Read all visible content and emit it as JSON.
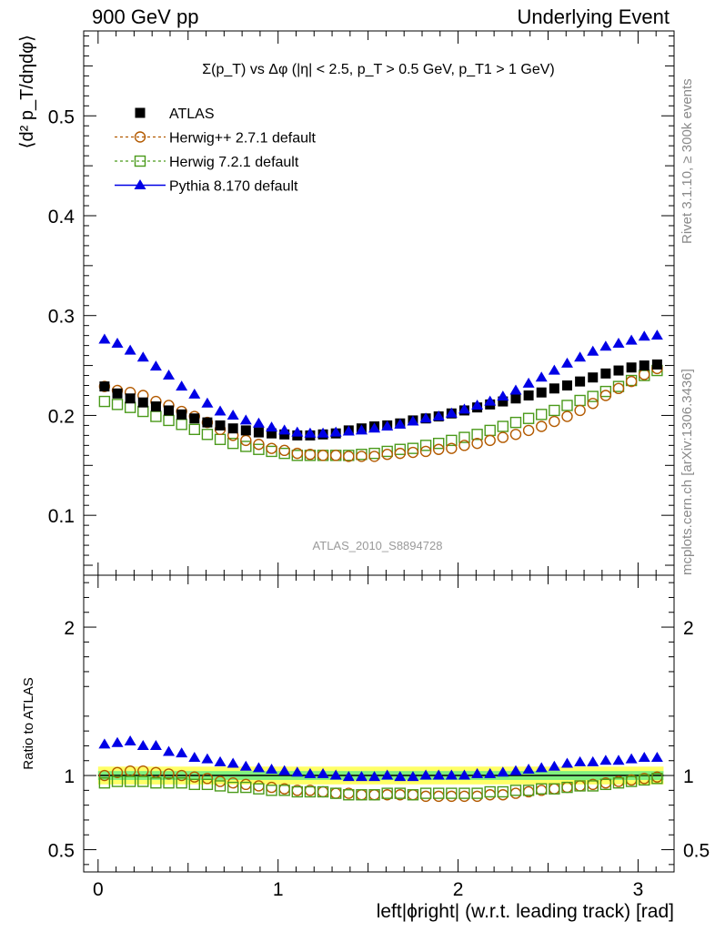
{
  "header": {
    "left": "900 GeV pp",
    "right": "Underlying Event"
  },
  "side_labels": {
    "rivet": "Rivet 3.1.10, ≥ 300k events",
    "mcplots": "mcplots.cern.ch [arXiv:1306.3436]"
  },
  "watermark": "ATLAS_2010_S8894728",
  "colors": {
    "atlas": "#000000",
    "herwigpp": "#b35a00",
    "herwig7": "#4a9a1a",
    "pythia": "#0000e6",
    "band_inner": "#7ff07f",
    "band_outer": "#ffff66"
  },
  "chart_data": [
    {
      "type": "scatter",
      "title": "Σ(p_T) vs Δφ (|η| < 2.5, p_T > 0.5 GeV, p_T1 > 1 GeV)",
      "xlabel": "",
      "ylabel": "⟨d² p_T/dηdφ⟩",
      "xlim": [
        -0.08,
        3.2
      ],
      "ylim": [
        0.04,
        0.585
      ],
      "y_ticks": [
        0.1,
        0.2,
        0.3,
        0.4,
        0.5
      ],
      "y_tick_labels": [
        "0.1",
        "0.2",
        "0.3",
        "0.4",
        "0.5"
      ],
      "grid": false,
      "legend_position": "top-left",
      "x": [
        0.0357,
        0.1071,
        0.1785,
        0.2499,
        0.3213,
        0.3927,
        0.4641,
        0.5355,
        0.6069,
        0.6783,
        0.7497,
        0.8211,
        0.8925,
        0.9639,
        1.0353,
        1.1067,
        1.1781,
        1.2495,
        1.3209,
        1.3923,
        1.4637,
        1.5351,
        1.6065,
        1.6779,
        1.7493,
        1.8207,
        1.8921,
        1.9635,
        2.0349,
        2.1063,
        2.1777,
        2.2491,
        2.3205,
        2.3919,
        2.4633,
        2.5347,
        2.6061,
        2.6775,
        2.7489,
        2.8203,
        2.8917,
        2.9631,
        3.0345,
        3.1059
      ],
      "series": [
        {
          "name": "ATLAS",
          "marker": "filled-square",
          "values": [
            0.229,
            0.222,
            0.217,
            0.213,
            0.209,
            0.205,
            0.201,
            0.197,
            0.193,
            0.19,
            0.187,
            0.185,
            0.183,
            0.182,
            0.181,
            0.18,
            0.18,
            0.181,
            0.182,
            0.185,
            0.187,
            0.189,
            0.19,
            0.192,
            0.195,
            0.197,
            0.199,
            0.202,
            0.205,
            0.208,
            0.211,
            0.214,
            0.217,
            0.22,
            0.223,
            0.227,
            0.23,
            0.234,
            0.238,
            0.242,
            0.245,
            0.248,
            0.25,
            0.251
          ]
        },
        {
          "name": "Herwig++ 2.7.1 default",
          "marker": "open-circle",
          "values": [
            0.229,
            0.225,
            0.223,
            0.22,
            0.214,
            0.21,
            0.204,
            0.199,
            0.193,
            0.186,
            0.18,
            0.175,
            0.171,
            0.167,
            0.165,
            0.162,
            0.161,
            0.16,
            0.16,
            0.159,
            0.159,
            0.159,
            0.161,
            0.162,
            0.163,
            0.164,
            0.166,
            0.167,
            0.17,
            0.172,
            0.175,
            0.178,
            0.181,
            0.185,
            0.189,
            0.194,
            0.199,
            0.205,
            0.212,
            0.22,
            0.227,
            0.234,
            0.241,
            0.247
          ]
        },
        {
          "name": "Herwig 7.2.1 default",
          "marker": "open-square",
          "values": [
            0.214,
            0.211,
            0.208,
            0.204,
            0.199,
            0.195,
            0.191,
            0.186,
            0.181,
            0.176,
            0.172,
            0.169,
            0.166,
            0.164,
            0.162,
            0.16,
            0.16,
            0.16,
            0.16,
            0.16,
            0.161,
            0.162,
            0.164,
            0.166,
            0.167,
            0.17,
            0.172,
            0.175,
            0.178,
            0.181,
            0.185,
            0.189,
            0.193,
            0.197,
            0.201,
            0.205,
            0.21,
            0.215,
            0.219,
            0.224,
            0.229,
            0.235,
            0.24,
            0.245
          ]
        },
        {
          "name": "Pythia 8.170 default",
          "marker": "filled-triangle",
          "values": [
            0.276,
            0.272,
            0.265,
            0.258,
            0.249,
            0.24,
            0.229,
            0.221,
            0.212,
            0.204,
            0.2,
            0.195,
            0.192,
            0.188,
            0.185,
            0.183,
            0.182,
            0.182,
            0.183,
            0.184,
            0.185,
            0.187,
            0.189,
            0.191,
            0.194,
            0.197,
            0.199,
            0.202,
            0.206,
            0.21,
            0.214,
            0.219,
            0.225,
            0.232,
            0.238,
            0.245,
            0.252,
            0.258,
            0.264,
            0.269,
            0.272,
            0.275,
            0.279,
            0.28
          ]
        }
      ]
    },
    {
      "type": "line",
      "xlabel": "left|ϕright| (w.r.t. leading track) [rad]",
      "ylabel": "Ratio to ATLAS",
      "xlim": [
        -0.08,
        3.2
      ],
      "ylim": [
        0.35,
        2.35
      ],
      "x_ticks": [
        0,
        1,
        2,
        3
      ],
      "x_tick_labels": [
        "0",
        "1",
        "2",
        "3"
      ],
      "y_ticks": [
        0.5,
        1,
        2
      ],
      "y_tick_labels": [
        "0.5",
        "1",
        "2"
      ],
      "band_inner_halfwidth": 0.03,
      "band_outer_halfwidth": 0.06,
      "x": [
        0.0357,
        0.1071,
        0.1785,
        0.2499,
        0.3213,
        0.3927,
        0.4641,
        0.5355,
        0.6069,
        0.6783,
        0.7497,
        0.8211,
        0.8925,
        0.9639,
        1.0353,
        1.1067,
        1.1781,
        1.2495,
        1.3209,
        1.3923,
        1.4637,
        1.5351,
        1.6065,
        1.6779,
        1.7493,
        1.8207,
        1.8921,
        1.9635,
        2.0349,
        2.1063,
        2.1777,
        2.2491,
        2.3205,
        2.3919,
        2.4633,
        2.5347,
        2.6061,
        2.6775,
        2.7489,
        2.8203,
        2.8917,
        2.9631,
        3.0345,
        3.1059
      ],
      "series": [
        {
          "name": "Herwig++ 2.7.1 default",
          "marker": "open-circle",
          "values": [
            1.0,
            1.02,
            1.03,
            1.03,
            1.02,
            1.01,
            1.0,
            0.99,
            0.98,
            0.96,
            0.95,
            0.94,
            0.93,
            0.92,
            0.91,
            0.9,
            0.9,
            0.89,
            0.88,
            0.88,
            0.87,
            0.87,
            0.87,
            0.87,
            0.87,
            0.86,
            0.86,
            0.86,
            0.86,
            0.86,
            0.87,
            0.87,
            0.88,
            0.89,
            0.9,
            0.91,
            0.92,
            0.93,
            0.94,
            0.95,
            0.96,
            0.97,
            0.98,
            0.99
          ]
        },
        {
          "name": "Herwig 7.2.1 default",
          "marker": "open-square",
          "values": [
            0.95,
            0.96,
            0.96,
            0.96,
            0.95,
            0.95,
            0.95,
            0.94,
            0.94,
            0.93,
            0.92,
            0.92,
            0.91,
            0.9,
            0.9,
            0.89,
            0.89,
            0.89,
            0.88,
            0.87,
            0.87,
            0.87,
            0.88,
            0.88,
            0.87,
            0.88,
            0.88,
            0.88,
            0.88,
            0.88,
            0.89,
            0.89,
            0.9,
            0.9,
            0.91,
            0.91,
            0.92,
            0.93,
            0.93,
            0.94,
            0.95,
            0.96,
            0.97,
            0.98
          ]
        },
        {
          "name": "Pythia 8.170 default",
          "marker": "filled-triangle",
          "values": [
            1.21,
            1.22,
            1.23,
            1.2,
            1.2,
            1.16,
            1.15,
            1.12,
            1.11,
            1.09,
            1.08,
            1.06,
            1.05,
            1.04,
            1.03,
            1.02,
            1.01,
            1.01,
            1.0,
            0.99,
            0.99,
            0.99,
            1.0,
            0.99,
            0.99,
            1.0,
            1.0,
            1.0,
            1.0,
            1.01,
            1.01,
            1.02,
            1.03,
            1.04,
            1.05,
            1.06,
            1.08,
            1.09,
            1.09,
            1.1,
            1.1,
            1.11,
            1.12,
            1.12
          ]
        }
      ]
    }
  ]
}
